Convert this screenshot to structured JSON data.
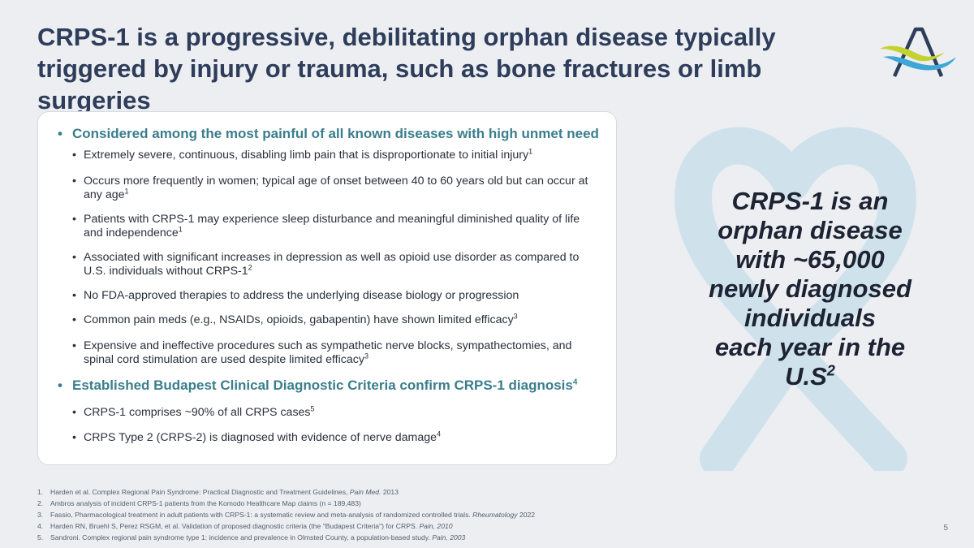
{
  "title": "CRPS-1 is a progressive, debilitating orphan disease typically triggered by injury or trauma, such as bone fractures or limb surgeries",
  "logo": {
    "icon": "company-a-logo-icon",
    "colors": {
      "letter": "#2e3d5a",
      "yellow": "#c3d22e",
      "blue": "#3fa7d6"
    }
  },
  "card": {
    "heading1": {
      "bullet": "•",
      "text": "Considered among the most painful of all known diseases with high unmet need"
    },
    "items1": [
      {
        "bullet": "•",
        "text": "Extremely severe, continuous, disabling limb pain that is disproportionate to initial injury",
        "sup": "1"
      },
      {
        "bullet": "•",
        "text": "Occurs more frequently in women; typical age of onset between 40 to 60 years old but can occur at any age",
        "sup": "1"
      },
      {
        "bullet": "•",
        "text": "Patients with CRPS-1 may experience sleep disturbance and meaningful diminished quality of life and independence",
        "sup": "1"
      },
      {
        "bullet": "•",
        "text": "Associated with significant increases in depression as well as opioid use disorder as compared to U.S. individuals without CRPS-1",
        "sup": "2"
      },
      {
        "bullet": "•",
        "text": "No FDA-approved therapies to address the underlying disease biology or progression",
        "sup": ""
      },
      {
        "bullet": "•",
        "text": "Common pain meds (e.g., NSAIDs, opioids, gabapentin) have shown limited efficacy",
        "sup": "3"
      },
      {
        "bullet": "•",
        "text": "Expensive and ineffective procedures such as sympathetic nerve blocks, sympathectomies, and spinal cord stimulation are used despite limited efficacy",
        "sup": "3"
      }
    ],
    "heading2": {
      "bullet": "•",
      "text": "Established Budapest Clinical Diagnostic Criteria confirm CRPS-1 diagnosis",
      "sup": "4"
    },
    "items2": [
      {
        "bullet": "•",
        "text": "CRPS-1 comprises ~90% of all CRPS cases",
        "sup": "5"
      },
      {
        "bullet": "•",
        "text": "CRPS Type 2 (CRPS-2) is diagnosed with evidence of nerve damage",
        "sup": "4"
      }
    ]
  },
  "callout": {
    "background_icon": "awareness-ribbon-heart-icon",
    "line1": "CRPS-1 is an",
    "line2": "orphan disease",
    "line3": "with ~65,000",
    "line4": "newly diagnosed",
    "line5": "individuals",
    "line6": "each year in the",
    "line7": "U.S",
    "sup": "2"
  },
  "references": [
    {
      "num": "1.",
      "text": "Harden et al. Complex Regional Pain Syndrome: Practical Diagnostic and Treatment Guidelines, ",
      "italic": "Pain Med.",
      "tail": " 2013"
    },
    {
      "num": "2.",
      "text": "Ambros analysis of incident CRPS-1 patients from the Komodo Healthcare Map claims (n = 189,483)",
      "italic": "",
      "tail": ""
    },
    {
      "num": "3.",
      "text": "Fassio, Pharmacological treatment in adult patients with CRPS-1: a systematic review and meta-analysis of randomized controlled trials. ",
      "italic": "Rheumatology",
      "tail": " 2022"
    },
    {
      "num": "4.",
      "text": "Harden RN, Bruehl S, Perez RSGM, et al. Validation of proposed diagnostic criteria (the \"Budapest Criteria\") for CRPS. ",
      "italic": "Pain, 2010",
      "tail": ""
    },
    {
      "num": "5.",
      "text": "Sandroni. Complex regional pain syndrome type 1: incidence and prevalence in Olmsted County, a population-based study. ",
      "italic": "Pain, 2003",
      "tail": ""
    }
  ],
  "page_number": "5"
}
